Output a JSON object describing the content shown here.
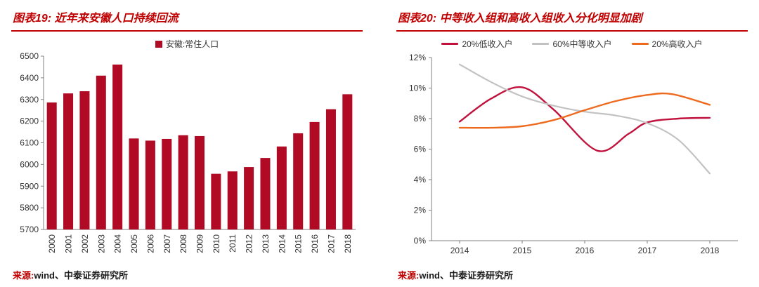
{
  "colors": {
    "accent_red": "#c00000",
    "axis_gray": "#808080"
  },
  "left_panel": {
    "title": "图表19: 近年来安徽人口持续回流",
    "source_label": "来源:",
    "source_text": "wind、中泰证券研究所"
  },
  "right_panel": {
    "title": "图表20: 中等收入组和高收入组收入分化明显加剧",
    "source_label": "来源:",
    "source_text": "wind、中泰证券研究所"
  },
  "chart_data": [
    {
      "type": "bar",
      "title": "图表19: 近年来安徽人口持续回流",
      "legend_label": "安徽:常住人口",
      "legend_position": "top",
      "bar_color": "#b00a24",
      "categories": [
        "2000",
        "2001",
        "2002",
        "2003",
        "2004",
        "2005",
        "2006",
        "2007",
        "2008",
        "2009",
        "2010",
        "2011",
        "2012",
        "2013",
        "2014",
        "2015",
        "2016",
        "2017",
        "2018"
      ],
      "values": [
        6286,
        6328,
        6338,
        6410,
        6461,
        6120,
        6110,
        6118,
        6135,
        6131,
        5957,
        5968,
        5988,
        6030,
        6083,
        6144,
        6196,
        6255,
        6324
      ],
      "xlabel": "",
      "ylabel": "",
      "ylim": [
        5700,
        6500
      ],
      "ytick_values": [
        5700,
        5800,
        5900,
        6000,
        6100,
        6200,
        6300,
        6400,
        6500
      ],
      "ytick_suffix": "",
      "grid": false,
      "x_labels_rotated": true
    },
    {
      "type": "line",
      "title": "图表20: 中等收入组和高收入组收入分化明显加剧",
      "legend_position": "top",
      "xlim": [
        2013.55,
        2018.45
      ],
      "x_ticks": [
        2014,
        2015,
        2016,
        2017,
        2018
      ],
      "xlabel": "",
      "ylabel": "",
      "ylim": [
        0,
        12
      ],
      "ytick_values": [
        0,
        2,
        4,
        6,
        8,
        10,
        12
      ],
      "ytick_suffix": "%",
      "grid": false,
      "series": [
        {
          "name": "20%低收入户",
          "color": "#c0123c",
          "width": 2.4,
          "x": [
            2014,
            2014.5,
            2015,
            2015.5,
            2016.2,
            2016.7,
            2017,
            2017.5,
            2018
          ],
          "values": [
            7.8,
            9.3,
            10.05,
            8.6,
            5.9,
            7.0,
            7.75,
            8.0,
            8.05
          ]
        },
        {
          "name": "60%中等收入户",
          "color": "#c2c2c2",
          "width": 2.2,
          "x": [
            2014,
            2014.5,
            2015,
            2015.5,
            2016,
            2016.5,
            2017,
            2017.5,
            2018
          ],
          "values": [
            11.55,
            10.4,
            9.45,
            8.85,
            8.45,
            8.2,
            7.7,
            6.6,
            4.4
          ]
        },
        {
          "name": "20%高收入户",
          "color": "#ee6a1e",
          "width": 2.4,
          "x": [
            2014,
            2014.5,
            2015,
            2015.5,
            2016,
            2016.5,
            2017,
            2017.4,
            2018
          ],
          "values": [
            7.4,
            7.4,
            7.5,
            7.9,
            8.55,
            9.15,
            9.55,
            9.6,
            8.9
          ]
        }
      ]
    }
  ]
}
